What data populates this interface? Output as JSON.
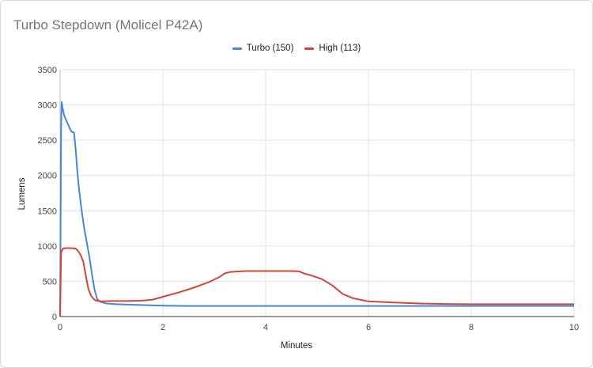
{
  "chart_data": {
    "type": "line",
    "title": "Turbo Stepdown (Molicel P42A)",
    "xlabel": "Minutes",
    "ylabel": "Lumens",
    "xlim": [
      0,
      10
    ],
    "ylim": [
      0,
      3500
    ],
    "xticks": [
      0,
      2,
      4,
      6,
      8,
      10
    ],
    "yticks": [
      0,
      500,
      1000,
      1500,
      2000,
      2500,
      3000,
      3500
    ],
    "grid": true,
    "legend_position": "top",
    "series": [
      {
        "name": "Turbo (150)",
        "color": "#4a86d6",
        "points": [
          [
            0,
            0
          ],
          [
            0.02,
            2700
          ],
          [
            0.03,
            3040
          ],
          [
            0.05,
            2950
          ],
          [
            0.08,
            2850
          ],
          [
            0.12,
            2780
          ],
          [
            0.17,
            2700
          ],
          [
            0.22,
            2620
          ],
          [
            0.27,
            2610
          ],
          [
            0.3,
            2400
          ],
          [
            0.33,
            2100
          ],
          [
            0.37,
            1800
          ],
          [
            0.42,
            1500
          ],
          [
            0.47,
            1250
          ],
          [
            0.52,
            1050
          ],
          [
            0.57,
            850
          ],
          [
            0.62,
            600
          ],
          [
            0.67,
            380
          ],
          [
            0.72,
            250
          ],
          [
            0.78,
            210
          ],
          [
            0.9,
            185
          ],
          [
            1.1,
            175
          ],
          [
            1.5,
            165
          ],
          [
            2,
            155
          ],
          [
            2.5,
            150
          ],
          [
            3,
            150
          ],
          [
            4,
            150
          ],
          [
            5,
            150
          ],
          [
            6,
            150
          ],
          [
            7,
            150
          ],
          [
            8,
            150
          ],
          [
            9,
            150
          ],
          [
            10,
            150
          ]
        ]
      },
      {
        "name": "High (113)",
        "color": "#d44535",
        "points": [
          [
            0,
            0
          ],
          [
            0.02,
            900
          ],
          [
            0.05,
            960
          ],
          [
            0.1,
            970
          ],
          [
            0.2,
            970
          ],
          [
            0.3,
            965
          ],
          [
            0.35,
            930
          ],
          [
            0.4,
            870
          ],
          [
            0.45,
            780
          ],
          [
            0.5,
            580
          ],
          [
            0.55,
            390
          ],
          [
            0.6,
            300
          ],
          [
            0.65,
            250
          ],
          [
            0.7,
            225
          ],
          [
            0.8,
            215
          ],
          [
            1,
            220
          ],
          [
            1.3,
            220
          ],
          [
            1.6,
            225
          ],
          [
            1.8,
            240
          ],
          [
            2,
            280
          ],
          [
            2.3,
            340
          ],
          [
            2.6,
            410
          ],
          [
            2.9,
            490
          ],
          [
            3.1,
            560
          ],
          [
            3.2,
            610
          ],
          [
            3.3,
            630
          ],
          [
            3.5,
            640
          ],
          [
            3.6,
            645
          ],
          [
            4,
            645
          ],
          [
            4.5,
            645
          ],
          [
            4.65,
            640
          ],
          [
            4.75,
            610
          ],
          [
            4.9,
            580
          ],
          [
            5.1,
            530
          ],
          [
            5.3,
            440
          ],
          [
            5.5,
            320
          ],
          [
            5.7,
            260
          ],
          [
            5.9,
            230
          ],
          [
            6,
            215
          ],
          [
            6.5,
            200
          ],
          [
            7,
            185
          ],
          [
            7.5,
            178
          ],
          [
            8,
            175
          ],
          [
            9,
            175
          ],
          [
            10,
            175
          ]
        ]
      }
    ]
  }
}
